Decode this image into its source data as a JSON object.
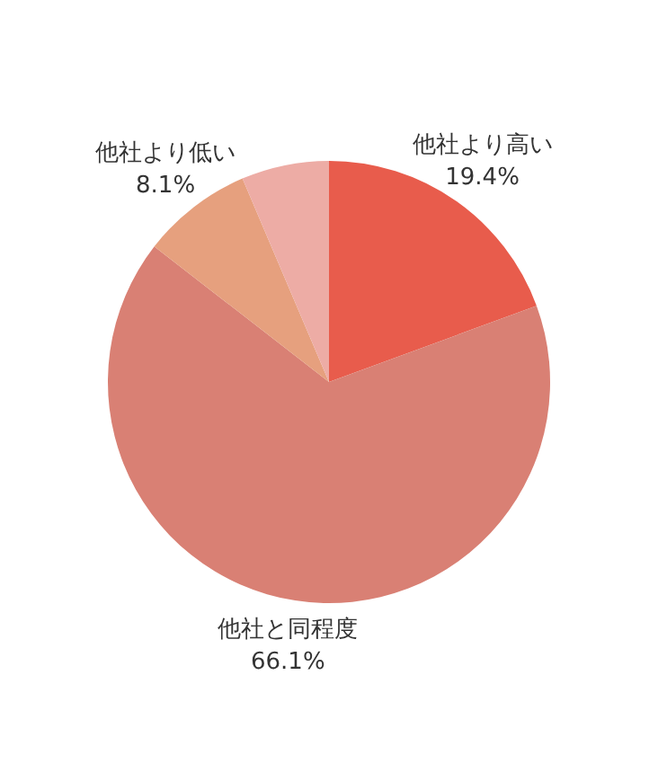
{
  "chart_data": {
    "type": "pie",
    "categories": [
      "他社より高い",
      "他社と同程度",
      "他社より低い",
      null
    ],
    "values": [
      19.4,
      66.1,
      8.1,
      6.4
    ],
    "value_labels": [
      "19.4%",
      "66.1%",
      "8.1%",
      null
    ],
    "colors": [
      "#e85c4c",
      "#d98074",
      "#e6a07e",
      "#edaca5"
    ],
    "legend": false
  }
}
